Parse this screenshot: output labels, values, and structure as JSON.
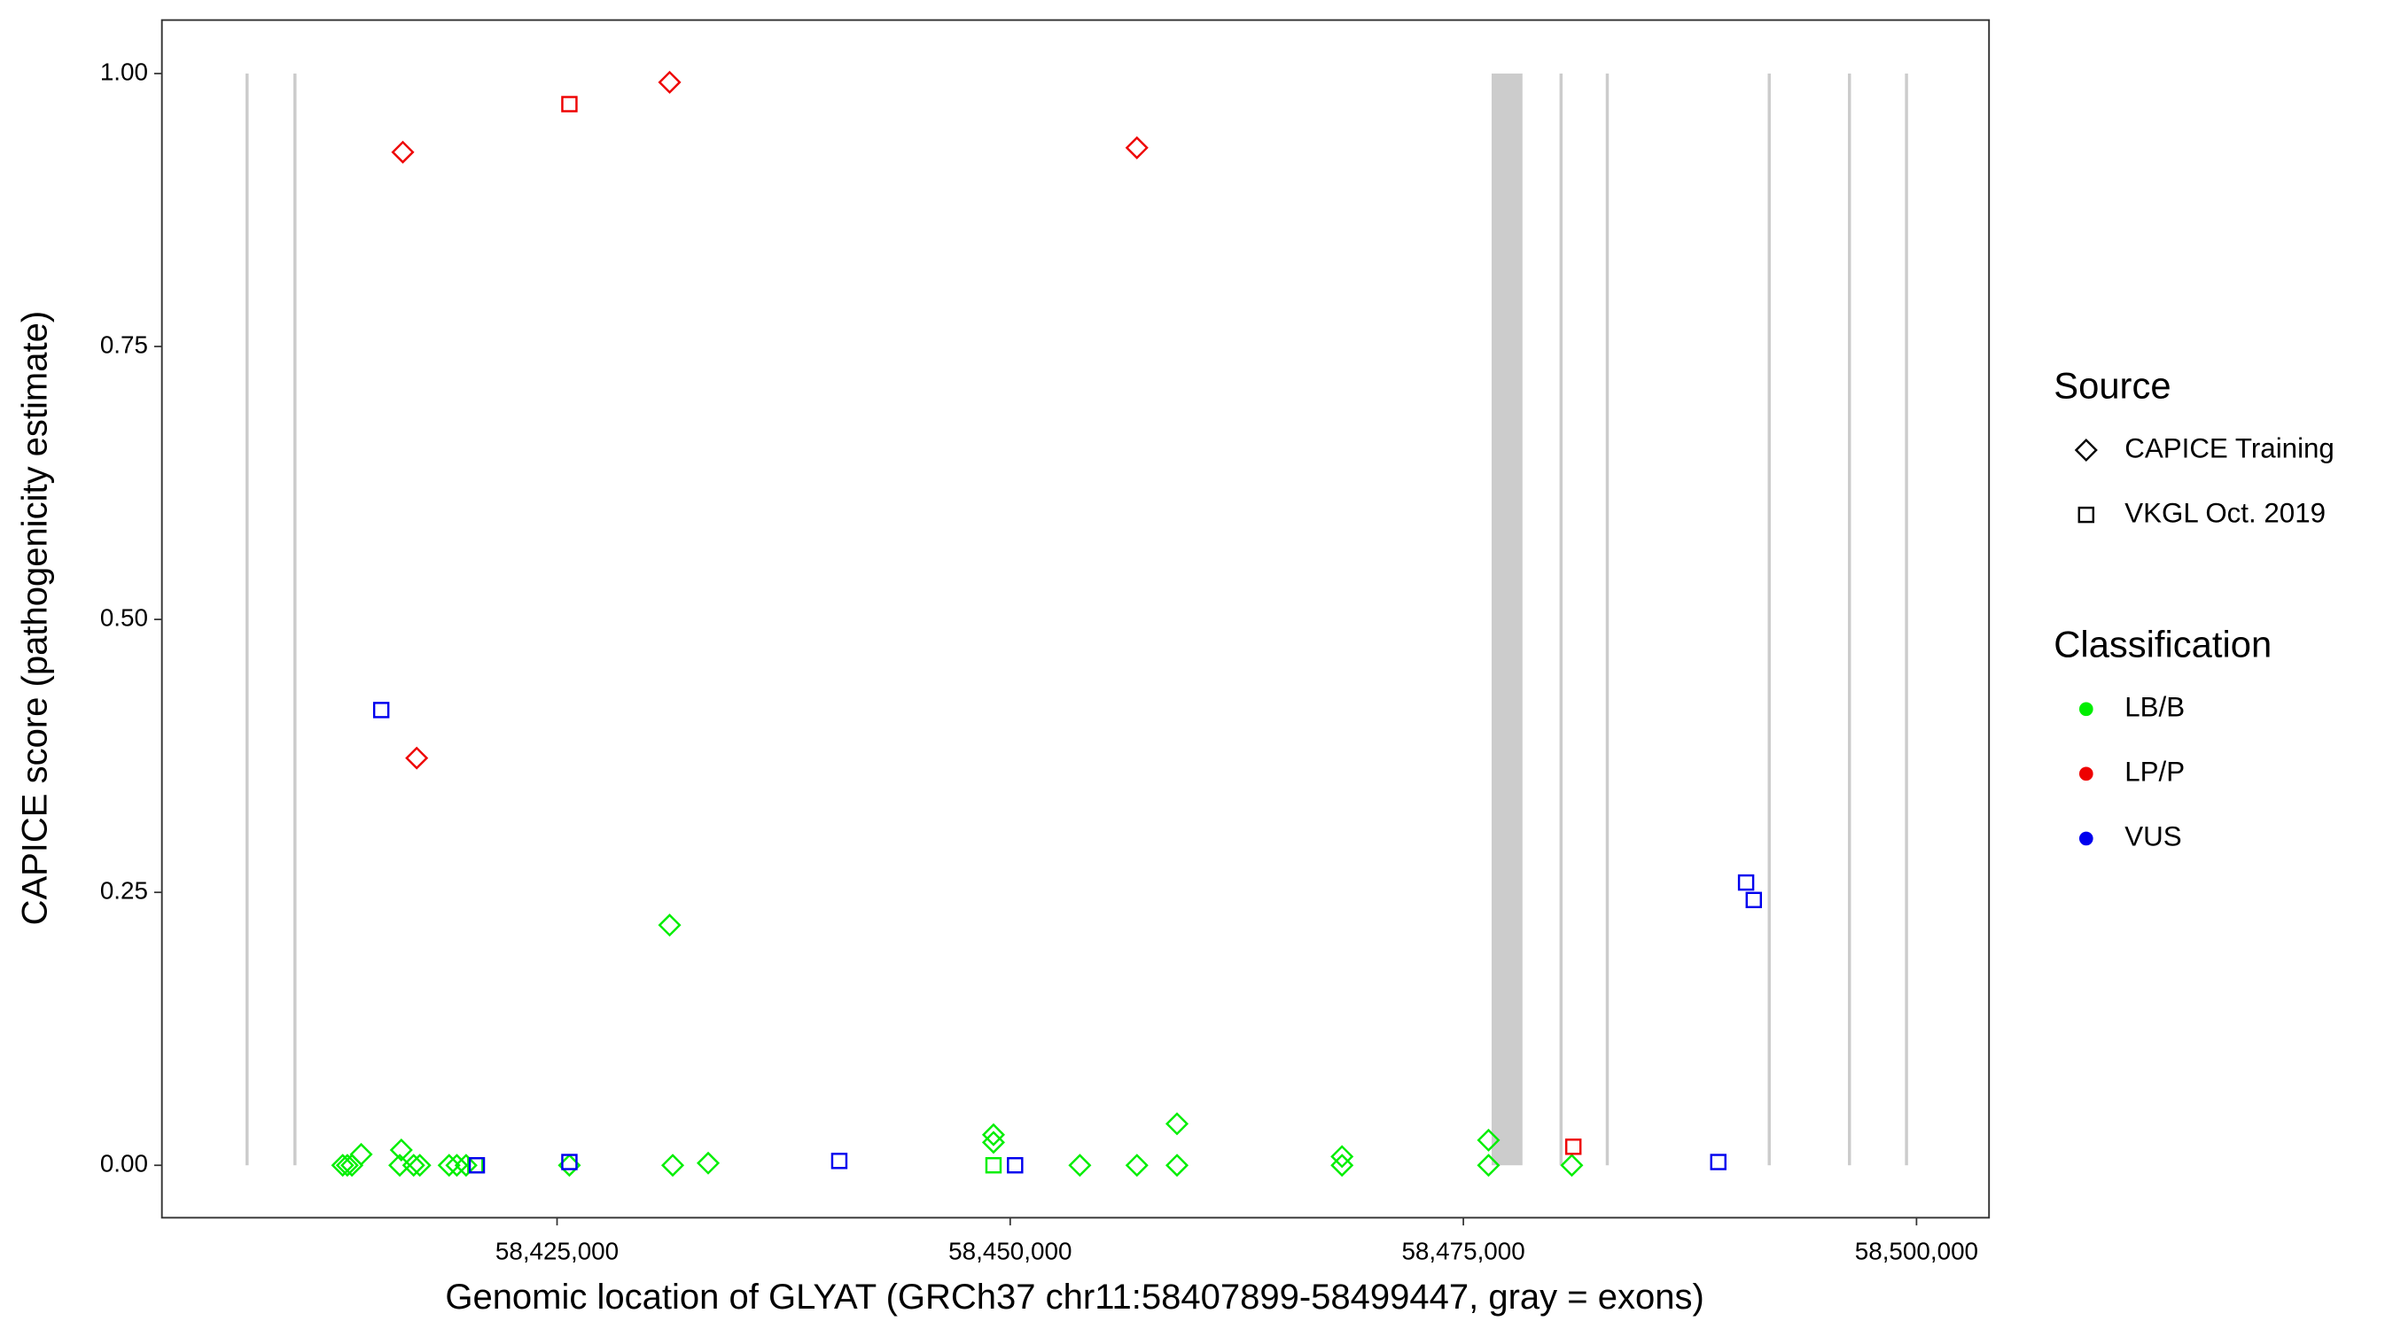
{
  "chart_data": {
    "type": "scatter",
    "xlabel": "Genomic location of GLYAT (GRCh37 chr11:58407899-58499447, gray = exons)",
    "ylabel": "CAPICE score (pathogenicity estimate)",
    "xlim": [
      58403200,
      58504000
    ],
    "ylim": [
      -0.048,
      1.049
    ],
    "xticks": [
      {
        "value": 58425000,
        "label": "58,425,000"
      },
      {
        "value": 58450000,
        "label": "58,450,000"
      },
      {
        "value": 58475000,
        "label": "58,475,000"
      },
      {
        "value": 58500000,
        "label": "58,500,000"
      }
    ],
    "yticks": [
      {
        "value": 0,
        "label": "0.00"
      },
      {
        "value": 0.25,
        "label": "0.25"
      },
      {
        "value": 0.5,
        "label": "0.50"
      },
      {
        "value": 0.75,
        "label": "0.75"
      },
      {
        "value": 1,
        "label": "1.00"
      }
    ],
    "exon_color": "#cccccc",
    "exons": [
      [
        58407830,
        58407970
      ],
      [
        58410470,
        58410610
      ],
      [
        58476560,
        58478262
      ],
      [
        58480320,
        58480460
      ],
      [
        58482870,
        58483010
      ],
      [
        58491800,
        58491950
      ],
      [
        58496230,
        58496370
      ],
      [
        58499377,
        58499517
      ]
    ],
    "legends": [
      {
        "title": "Source",
        "entries": [
          {
            "label": "CAPICE Training",
            "shape": "diamond"
          },
          {
            "label": "VKGL Oct. 2019",
            "shape": "square"
          }
        ]
      },
      {
        "title": "Classification",
        "entries": [
          {
            "label": "LB/B",
            "color": "#00ee00"
          },
          {
            "label": "LP/P",
            "color": "#ee0000"
          },
          {
            "label": "VUS",
            "color": "#0000ee"
          }
        ]
      }
    ],
    "series": [
      {
        "shape": "diamond",
        "color": "#00ee00",
        "x": [
          58413174,
          58413429,
          58413684,
          58414195,
          58416322,
          58416407,
          58417088,
          58417428,
          58419044,
          58419470,
          58419980,
          58425681,
          58431211,
          58431381,
          58433338,
          58449078,
          58449078,
          58453842,
          58456990,
          58459202,
          58459202,
          58468306,
          58468306,
          58476388,
          58476388,
          58480982
        ],
        "y": [
          0,
          0,
          0,
          0.01,
          0,
          0.014,
          0,
          0,
          0,
          0,
          0,
          0,
          0.22,
          0,
          0.002,
          0.028,
          0.021,
          0,
          0,
          0.038,
          0,
          0.008,
          0,
          0.023,
          0,
          0
        ]
      },
      {
        "shape": "square",
        "color": "#00ee00",
        "x": [
          58420491,
          58449078
        ],
        "y": [
          0,
          0
        ]
      },
      {
        "shape": "diamond",
        "color": "#ee0000",
        "x": [
          58416492,
          58417258,
          58431211,
          58456990
        ],
        "y": [
          0.928,
          0.373,
          0.992,
          0.932
        ]
      },
      {
        "shape": "square",
        "color": "#ee0000",
        "x": [
          58425681,
          58481068
        ],
        "y": [
          0.972,
          0.017
        ]
      },
      {
        "shape": "square",
        "color": "#0000ee",
        "x": [
          58415301,
          58420576,
          58425681,
          58440570,
          58450269,
          58489065,
          58490597,
          58491022
        ],
        "y": [
          0.417,
          0,
          0.003,
          0.004,
          0,
          0.003,
          0.259,
          0.243
        ]
      }
    ]
  }
}
